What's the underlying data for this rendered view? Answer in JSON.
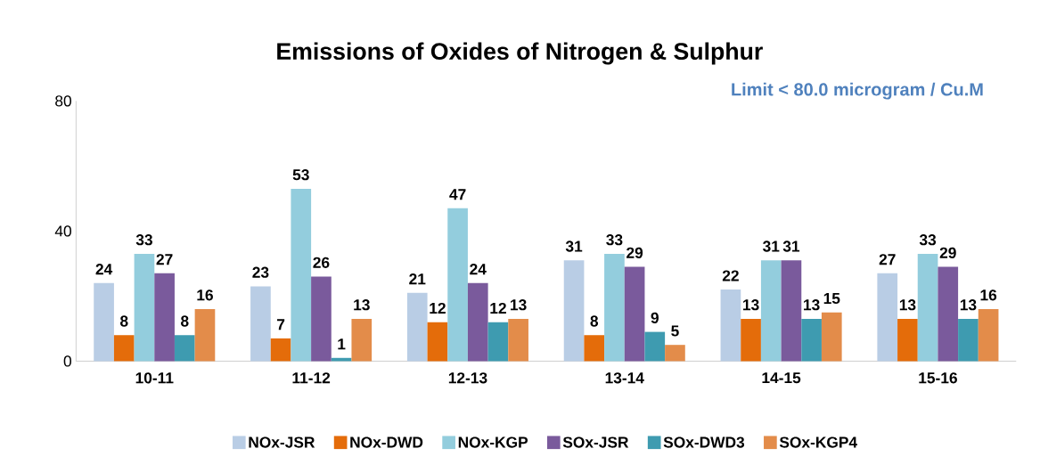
{
  "chart_data": {
    "type": "bar",
    "title": "Emissions of Oxides of Nitrogen & Sulphur",
    "annotations": [
      "Limit < 80.0 microgram / Cu.M"
    ],
    "categories": [
      "10-11",
      "11-12",
      "12-13",
      "13-14",
      "14-15",
      "15-16"
    ],
    "series": [
      {
        "name": "NOx-JSR",
        "color": "#b9cde5",
        "values": [
          24,
          23,
          21,
          31,
          22,
          27
        ]
      },
      {
        "name": "NOx-DWD",
        "color": "#e46c0a",
        "values": [
          8,
          7,
          12,
          8,
          13,
          13
        ]
      },
      {
        "name": "NOx-KGP",
        "color": "#93cddd",
        "values": [
          33,
          53,
          47,
          33,
          31,
          33
        ]
      },
      {
        "name": "SOx-JSR",
        "color": "#7a5a9c",
        "values": [
          27,
          26,
          24,
          29,
          31,
          29
        ]
      },
      {
        "name": "SOx-DWD3",
        "color": "#3e9bb0",
        "values": [
          8,
          1,
          12,
          9,
          13,
          13
        ]
      },
      {
        "name": "SOx-KGP4",
        "color": "#e38c4a",
        "values": [
          16,
          13,
          13,
          5,
          15,
          16
        ]
      }
    ],
    "ylim": [
      0,
      80
    ],
    "yticks": [
      0,
      40,
      80
    ],
    "grid": false,
    "legend": "bottom",
    "data_labels": true
  }
}
